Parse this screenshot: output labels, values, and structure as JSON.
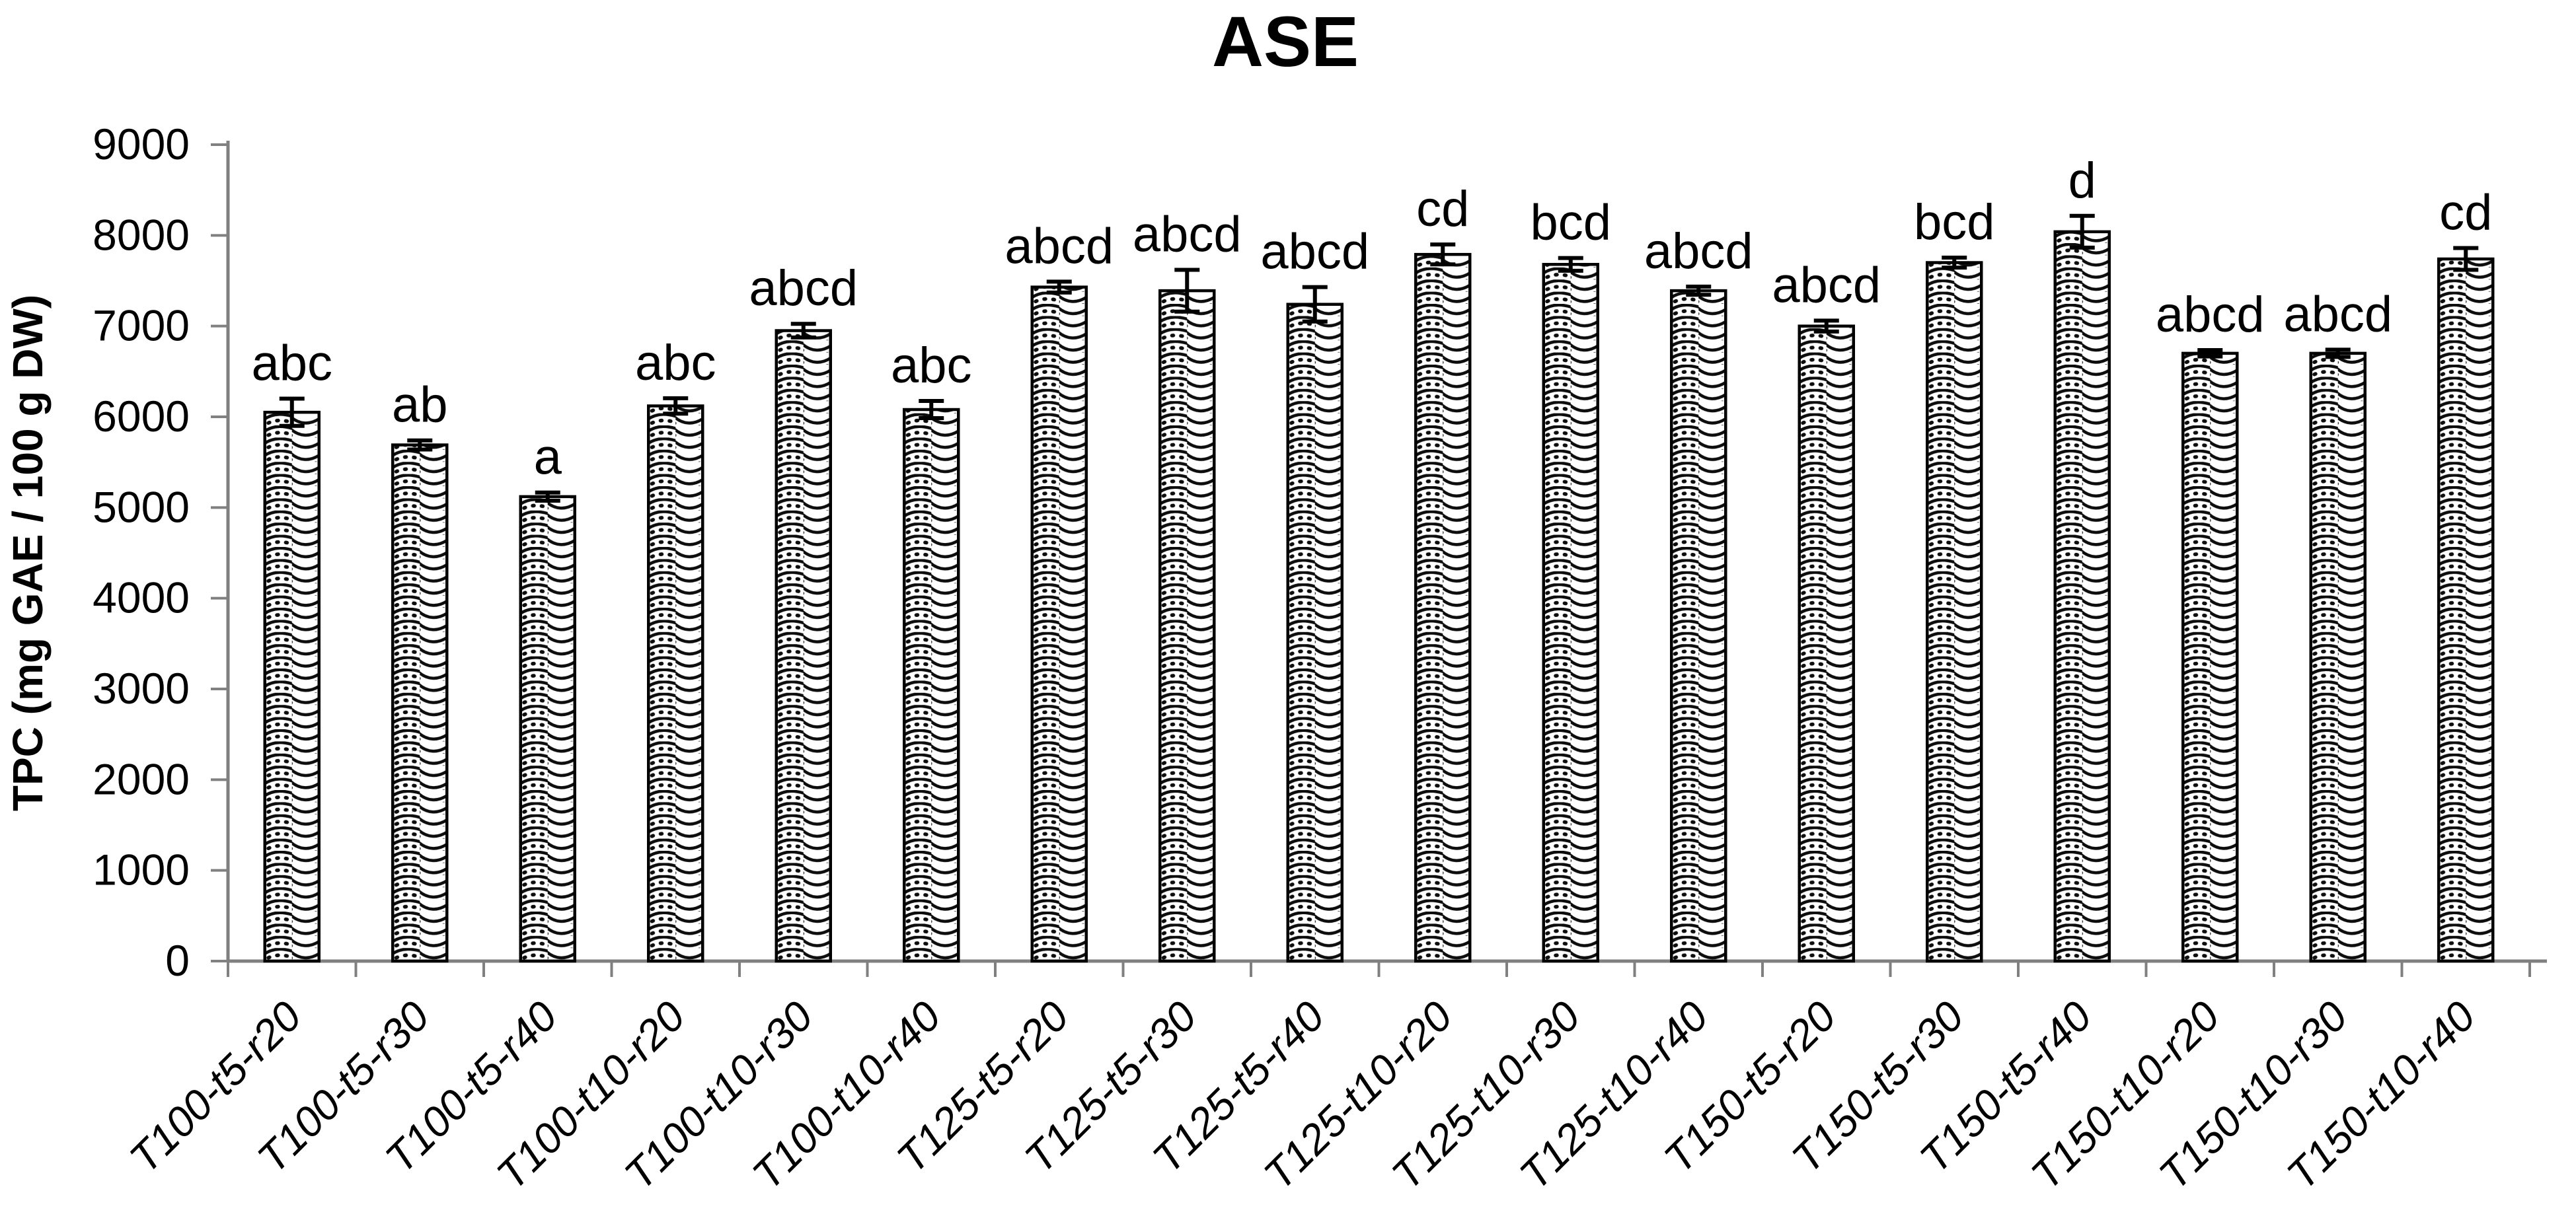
{
  "chart_data": {
    "type": "bar",
    "title": "ASE",
    "ylabel": "TPC (mg GAE / 100 g DW)",
    "xlabel": "",
    "ylim": [
      0,
      9000
    ],
    "ytick_step": 1000,
    "y_ticks": [
      "0",
      "1000",
      "2000",
      "3000",
      "4000",
      "5000",
      "6000",
      "7000",
      "8000",
      "9000"
    ],
    "grid": false,
    "legend": false,
    "bar_style": "white bars with black zigzag (chevron) hatch pattern, black outline, error bars, significance letters above",
    "categories": [
      "T100-t5-r20",
      "T100-t5-r30",
      "T100-t5-r40",
      "T100-t10-r20",
      "T100-t10-r30",
      "T100-t10-r40",
      "T125-t5-r20",
      "T125-t5-r30",
      "T125-t5-r40",
      "T125-t10-r20",
      "T125-t10-r30",
      "T125-t10-r40",
      "T150-t5-r20",
      "T150-t5-r30",
      "T150-t5-r40",
      "T150-t10-r20",
      "T150-t10-r30",
      "T150-t10-r40"
    ],
    "values": [
      6050,
      5690,
      5120,
      6120,
      6950,
      6080,
      7430,
      7390,
      7240,
      7790,
      7680,
      7390,
      7000,
      7700,
      8040,
      6700,
      6700,
      7740
    ],
    "errors": [
      150,
      50,
      45,
      85,
      75,
      95,
      60,
      230,
      190,
      110,
      70,
      45,
      60,
      55,
      175,
      35,
      40,
      120
    ],
    "sig_letters": [
      "abc",
      "ab",
      "a",
      "abc",
      "abcd",
      "abc",
      "abcd",
      "abcd",
      "abcd",
      "cd",
      "bcd",
      "abcd",
      "abcd",
      "bcd",
      "d",
      "abcd",
      "abcd",
      "cd"
    ]
  },
  "colors": {
    "background": "#ffffff",
    "axis": "#808080",
    "bar_outline": "#000000",
    "hatch": "#0d0d0d",
    "error_bar": "#000000",
    "text": "#000000"
  }
}
